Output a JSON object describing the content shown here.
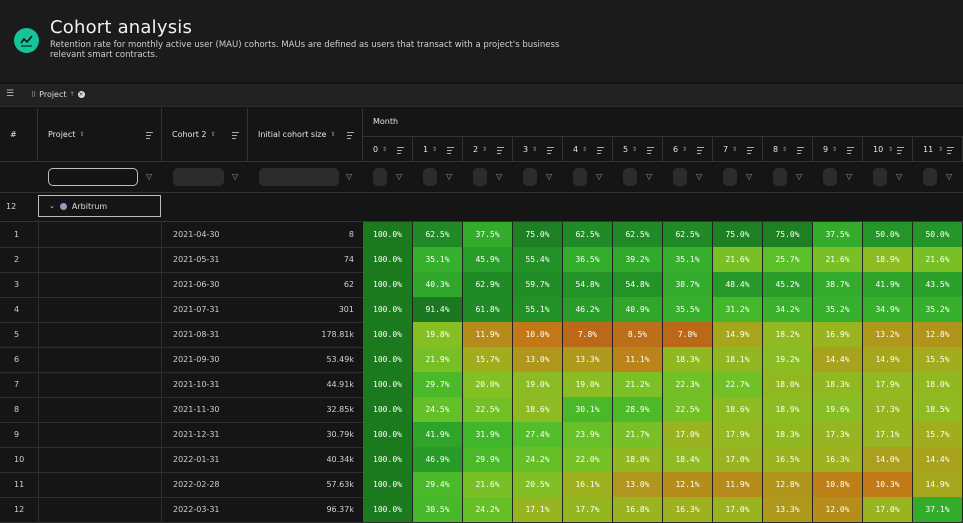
{
  "header": {
    "title": "Cohort analysis",
    "description": "Retention rate for monthly active user (MAU) cohorts. MAUs are defined as users that transact with a project's business relevant smart contracts."
  },
  "toolbar": {
    "group_chip": "Project"
  },
  "columns": {
    "index": "#",
    "project": "Project",
    "cohort": "Cohort 2",
    "size": "Initial cohort size",
    "month_group": "Month",
    "months": [
      "0",
      "1",
      "2",
      "3",
      "4",
      "5",
      "6",
      "7",
      "8",
      "9",
      "10",
      "11"
    ]
  },
  "group": {
    "count": "12",
    "label": "Arbitrum"
  },
  "rows": [
    {
      "i": "1",
      "cohort": "2021-04-30",
      "size": "8",
      "v": [
        "100.0%",
        "62.5%",
        "37.5%",
        "75.0%",
        "62.5%",
        "62.5%",
        "62.5%",
        "75.0%",
        "75.0%",
        "37.5%",
        "50.0%",
        "50.0%"
      ]
    },
    {
      "i": "2",
      "cohort": "2021-05-31",
      "size": "74",
      "v": [
        "100.0%",
        "35.1%",
        "45.9%",
        "55.4%",
        "36.5%",
        "39.2%",
        "35.1%",
        "21.6%",
        "25.7%",
        "21.6%",
        "18.9%",
        "21.6%"
      ]
    },
    {
      "i": "3",
      "cohort": "2021-06-30",
      "size": "62",
      "v": [
        "100.0%",
        "40.3%",
        "62.9%",
        "59.7%",
        "54.8%",
        "54.8%",
        "38.7%",
        "48.4%",
        "45.2%",
        "38.7%",
        "41.9%",
        "43.5%"
      ]
    },
    {
      "i": "4",
      "cohort": "2021-07-31",
      "size": "301",
      "v": [
        "100.0%",
        "91.4%",
        "61.8%",
        "55.1%",
        "46.2%",
        "40.9%",
        "35.5%",
        "31.2%",
        "34.2%",
        "35.2%",
        "34.9%",
        "35.2%"
      ]
    },
    {
      "i": "5",
      "cohort": "2021-08-31",
      "size": "178.81k",
      "v": [
        "100.0%",
        "19.8%",
        "11.9%",
        "10.0%",
        "7.8%",
        "8.5%",
        "7.8%",
        "14.9%",
        "18.2%",
        "16.9%",
        "13.2%",
        "12.8%"
      ]
    },
    {
      "i": "6",
      "cohort": "2021-09-30",
      "size": "53.49k",
      "v": [
        "100.0%",
        "21.9%",
        "15.7%",
        "13.0%",
        "13.3%",
        "11.1%",
        "18.3%",
        "18.1%",
        "19.2%",
        "14.4%",
        "14.9%",
        "15.5%"
      ]
    },
    {
      "i": "7",
      "cohort": "2021-10-31",
      "size": "44.91k",
      "v": [
        "100.0%",
        "29.7%",
        "20.0%",
        "19.0%",
        "19.0%",
        "21.2%",
        "22.3%",
        "22.7%",
        "18.0%",
        "18.3%",
        "17.9%",
        "18.0%"
      ]
    },
    {
      "i": "8",
      "cohort": "2021-11-30",
      "size": "32.85k",
      "v": [
        "100.0%",
        "24.5%",
        "22.5%",
        "18.6%",
        "30.1%",
        "28.9%",
        "22.5%",
        "18.6%",
        "18.9%",
        "19.6%",
        "17.3%",
        "18.5%"
      ]
    },
    {
      "i": "9",
      "cohort": "2021-12-31",
      "size": "30.79k",
      "v": [
        "100.0%",
        "41.9%",
        "31.9%",
        "27.4%",
        "23.9%",
        "21.7%",
        "17.0%",
        "17.9%",
        "18.3%",
        "17.3%",
        "17.1%",
        "15.7%"
      ]
    },
    {
      "i": "10",
      "cohort": "2022-01-31",
      "size": "40.34k",
      "v": [
        "100.0%",
        "46.9%",
        "29.9%",
        "24.2%",
        "22.0%",
        "18.0%",
        "18.4%",
        "17.0%",
        "16.5%",
        "16.3%",
        "14.0%",
        "14.4%"
      ]
    },
    {
      "i": "11",
      "cohort": "2022-02-28",
      "size": "57.63k",
      "v": [
        "100.0%",
        "29.4%",
        "21.6%",
        "20.5%",
        "16.1%",
        "13.0%",
        "12.1%",
        "11.9%",
        "12.8%",
        "10.8%",
        "10.3%",
        "14.9%"
      ]
    },
    {
      "i": "12",
      "cohort": "2022-03-31",
      "size": "96.37k",
      "v": [
        "100.0%",
        "30.5%",
        "24.2%",
        "17.1%",
        "17.7%",
        "16.8%",
        "16.3%",
        "17.0%",
        "13.3%",
        "12.0%",
        "17.0%",
        "37.1%"
      ]
    }
  ],
  "colors": {
    "accent": "#17c49a"
  }
}
